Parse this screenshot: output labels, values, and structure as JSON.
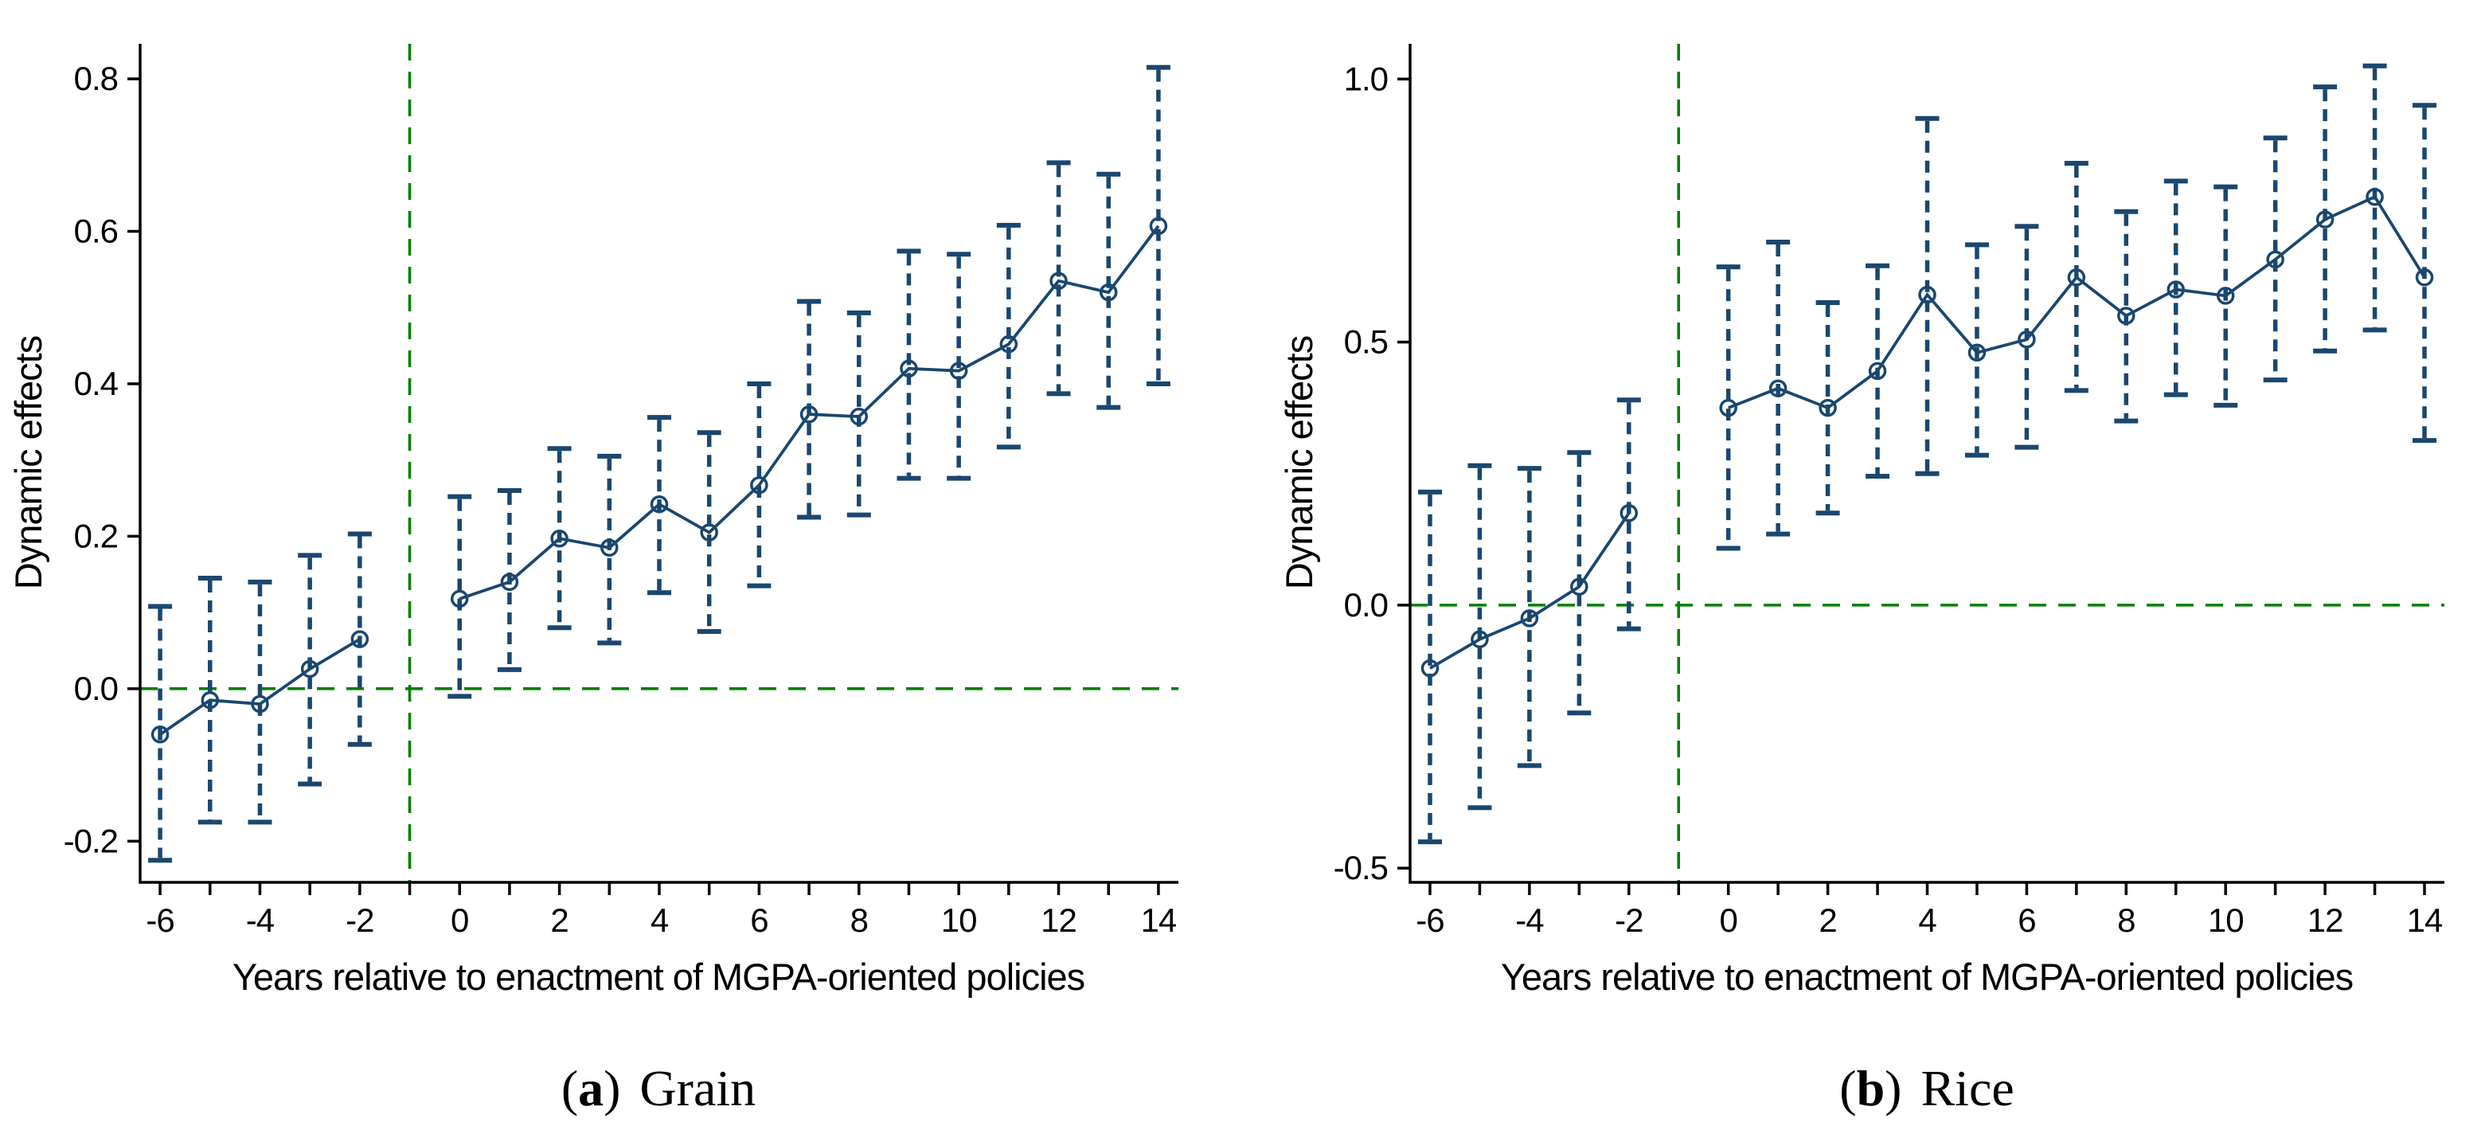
{
  "figure": {
    "background": "#ffffff",
    "accent_line_color": "#1a476f",
    "reference_line_color": "#008000",
    "axis_color": "#000000"
  },
  "chart_data": [
    {
      "type": "line",
      "panel_id": "a",
      "caption": {
        "prefix": "(",
        "letter": "a",
        "suffix": ")",
        "title": "Grain"
      },
      "xlabel": "Years relative to enactment of MGPA-oriented policies",
      "ylabel": "Dynamic effects",
      "xlim": [
        -6.4,
        14.4
      ],
      "ylim": [
        -0.254,
        0.846
      ],
      "grid": false,
      "legend": "none",
      "ref_hline": 0,
      "ref_vline": -1,
      "yticks": [
        {
          "v": 0.8,
          "label": "0.8"
        },
        {
          "v": 0.6,
          "label": "0.6"
        },
        {
          "v": 0.4,
          "label": "0.4"
        },
        {
          "v": 0.2,
          "label": "0.2"
        },
        {
          "v": 0.0,
          "label": "0.0"
        },
        {
          "v": -0.2,
          "label": "-0.2"
        }
      ],
      "xticks_minor": [
        -6,
        -5,
        -4,
        -3,
        -2,
        -1,
        0,
        1,
        2,
        3,
        4,
        5,
        6,
        7,
        8,
        9,
        10,
        11,
        12,
        13,
        14
      ],
      "xticks_labeled": [
        {
          "v": -6,
          "label": "-6"
        },
        {
          "v": -4,
          "label": "-4"
        },
        {
          "v": -2,
          "label": "-2"
        },
        {
          "v": 0,
          "label": "0"
        },
        {
          "v": 2,
          "label": "2"
        },
        {
          "v": 4,
          "label": "4"
        },
        {
          "v": 6,
          "label": "6"
        },
        {
          "v": 8,
          "label": "8"
        },
        {
          "v": 10,
          "label": "10"
        },
        {
          "v": 12,
          "label": "12"
        },
        {
          "v": 14,
          "label": "14"
        }
      ],
      "series": {
        "name": "dynamic-effect-estimates",
        "marker": "circle-open",
        "runs": [
          [
            0,
            4
          ],
          [
            5,
            19
          ]
        ],
        "points": [
          {
            "x": -6,
            "est": -0.06,
            "lo": -0.225,
            "hi": 0.108
          },
          {
            "x": -5,
            "est": -0.015,
            "lo": -0.175,
            "hi": 0.145
          },
          {
            "x": -4,
            "est": -0.02,
            "lo": -0.175,
            "hi": 0.14
          },
          {
            "x": -3,
            "est": 0.026,
            "lo": -0.125,
            "hi": 0.175
          },
          {
            "x": -2,
            "est": 0.065,
            "lo": -0.073,
            "hi": 0.203
          },
          {
            "x": 0,
            "est": 0.118,
            "lo": -0.01,
            "hi": 0.252
          },
          {
            "x": 1,
            "est": 0.14,
            "lo": 0.025,
            "hi": 0.26
          },
          {
            "x": 2,
            "est": 0.197,
            "lo": 0.08,
            "hi": 0.315
          },
          {
            "x": 3,
            "est": 0.185,
            "lo": 0.06,
            "hi": 0.305
          },
          {
            "x": 4,
            "est": 0.242,
            "lo": 0.126,
            "hi": 0.356
          },
          {
            "x": 5,
            "est": 0.205,
            "lo": 0.075,
            "hi": 0.336
          },
          {
            "x": 6,
            "est": 0.267,
            "lo": 0.135,
            "hi": 0.4
          },
          {
            "x": 7,
            "est": 0.36,
            "lo": 0.225,
            "hi": 0.508
          },
          {
            "x": 8,
            "est": 0.357,
            "lo": 0.228,
            "hi": 0.493
          },
          {
            "x": 9,
            "est": 0.42,
            "lo": 0.276,
            "hi": 0.574
          },
          {
            "x": 10,
            "est": 0.417,
            "lo": 0.276,
            "hi": 0.57
          },
          {
            "x": 11,
            "est": 0.452,
            "lo": 0.317,
            "hi": 0.608
          },
          {
            "x": 12,
            "est": 0.535,
            "lo": 0.387,
            "hi": 0.69
          },
          {
            "x": 13,
            "est": 0.52,
            "lo": 0.369,
            "hi": 0.675
          },
          {
            "x": 14,
            "est": 0.607,
            "lo": 0.4,
            "hi": 0.815
          }
        ]
      }
    },
    {
      "type": "line",
      "panel_id": "b",
      "caption": {
        "prefix": "(",
        "letter": "b",
        "suffix": ")",
        "title": "Rice"
      },
      "xlabel": "Years relative to enactment of MGPA-oriented policies",
      "ylabel": "Dynamic effects",
      "xlim": [
        -6.4,
        14.4
      ],
      "ylim": [
        -0.527,
        1.067
      ],
      "grid": false,
      "legend": "none",
      "ref_hline": 0,
      "ref_vline": -1,
      "yticks": [
        {
          "v": 1.0,
          "label": "1.0"
        },
        {
          "v": 0.5,
          "label": "0.5"
        },
        {
          "v": 0.0,
          "label": "0.0"
        },
        {
          "v": -0.5,
          "label": "-0.5"
        }
      ],
      "xticks_minor": [
        -6,
        -5,
        -4,
        -3,
        -2,
        -1,
        0,
        1,
        2,
        3,
        4,
        5,
        6,
        7,
        8,
        9,
        10,
        11,
        12,
        13,
        14
      ],
      "xticks_labeled": [
        {
          "v": -6,
          "label": "-6"
        },
        {
          "v": -4,
          "label": "-4"
        },
        {
          "v": -2,
          "label": "-2"
        },
        {
          "v": 0,
          "label": "0"
        },
        {
          "v": 2,
          "label": "2"
        },
        {
          "v": 4,
          "label": "4"
        },
        {
          "v": 6,
          "label": "6"
        },
        {
          "v": 8,
          "label": "8"
        },
        {
          "v": 10,
          "label": "10"
        },
        {
          "v": 12,
          "label": "12"
        },
        {
          "v": 14,
          "label": "14"
        }
      ],
      "series": {
        "name": "dynamic-effect-estimates",
        "marker": "circle-open",
        "runs": [
          [
            0,
            4
          ],
          [
            5,
            19
          ]
        ],
        "points": [
          {
            "x": -6,
            "est": -0.12,
            "lo": -0.45,
            "hi": 0.215
          },
          {
            "x": -5,
            "est": -0.065,
            "lo": -0.385,
            "hi": 0.265
          },
          {
            "x": -4,
            "est": -0.025,
            "lo": -0.305,
            "hi": 0.26
          },
          {
            "x": -3,
            "est": 0.035,
            "lo": -0.205,
            "hi": 0.29
          },
          {
            "x": -2,
            "est": 0.175,
            "lo": -0.045,
            "hi": 0.39
          },
          {
            "x": 0,
            "est": 0.375,
            "lo": 0.108,
            "hi": 0.643
          },
          {
            "x": 1,
            "est": 0.412,
            "lo": 0.135,
            "hi": 0.69
          },
          {
            "x": 2,
            "est": 0.375,
            "lo": 0.175,
            "hi": 0.575
          },
          {
            "x": 3,
            "est": 0.445,
            "lo": 0.245,
            "hi": 0.645
          },
          {
            "x": 4,
            "est": 0.59,
            "lo": 0.25,
            "hi": 0.925
          },
          {
            "x": 5,
            "est": 0.48,
            "lo": 0.285,
            "hi": 0.685
          },
          {
            "x": 6,
            "est": 0.505,
            "lo": 0.3,
            "hi": 0.72
          },
          {
            "x": 7,
            "est": 0.623,
            "lo": 0.408,
            "hi": 0.84
          },
          {
            "x": 8,
            "est": 0.55,
            "lo": 0.35,
            "hi": 0.748
          },
          {
            "x": 9,
            "est": 0.6,
            "lo": 0.4,
            "hi": 0.806
          },
          {
            "x": 10,
            "est": 0.588,
            "lo": 0.38,
            "hi": 0.795
          },
          {
            "x": 11,
            "est": 0.657,
            "lo": 0.428,
            "hi": 0.888
          },
          {
            "x": 12,
            "est": 0.733,
            "lo": 0.483,
            "hi": 0.985
          },
          {
            "x": 13,
            "est": 0.776,
            "lo": 0.523,
            "hi": 1.025
          },
          {
            "x": 14,
            "est": 0.623,
            "lo": 0.313,
            "hi": 0.95
          }
        ]
      }
    }
  ]
}
